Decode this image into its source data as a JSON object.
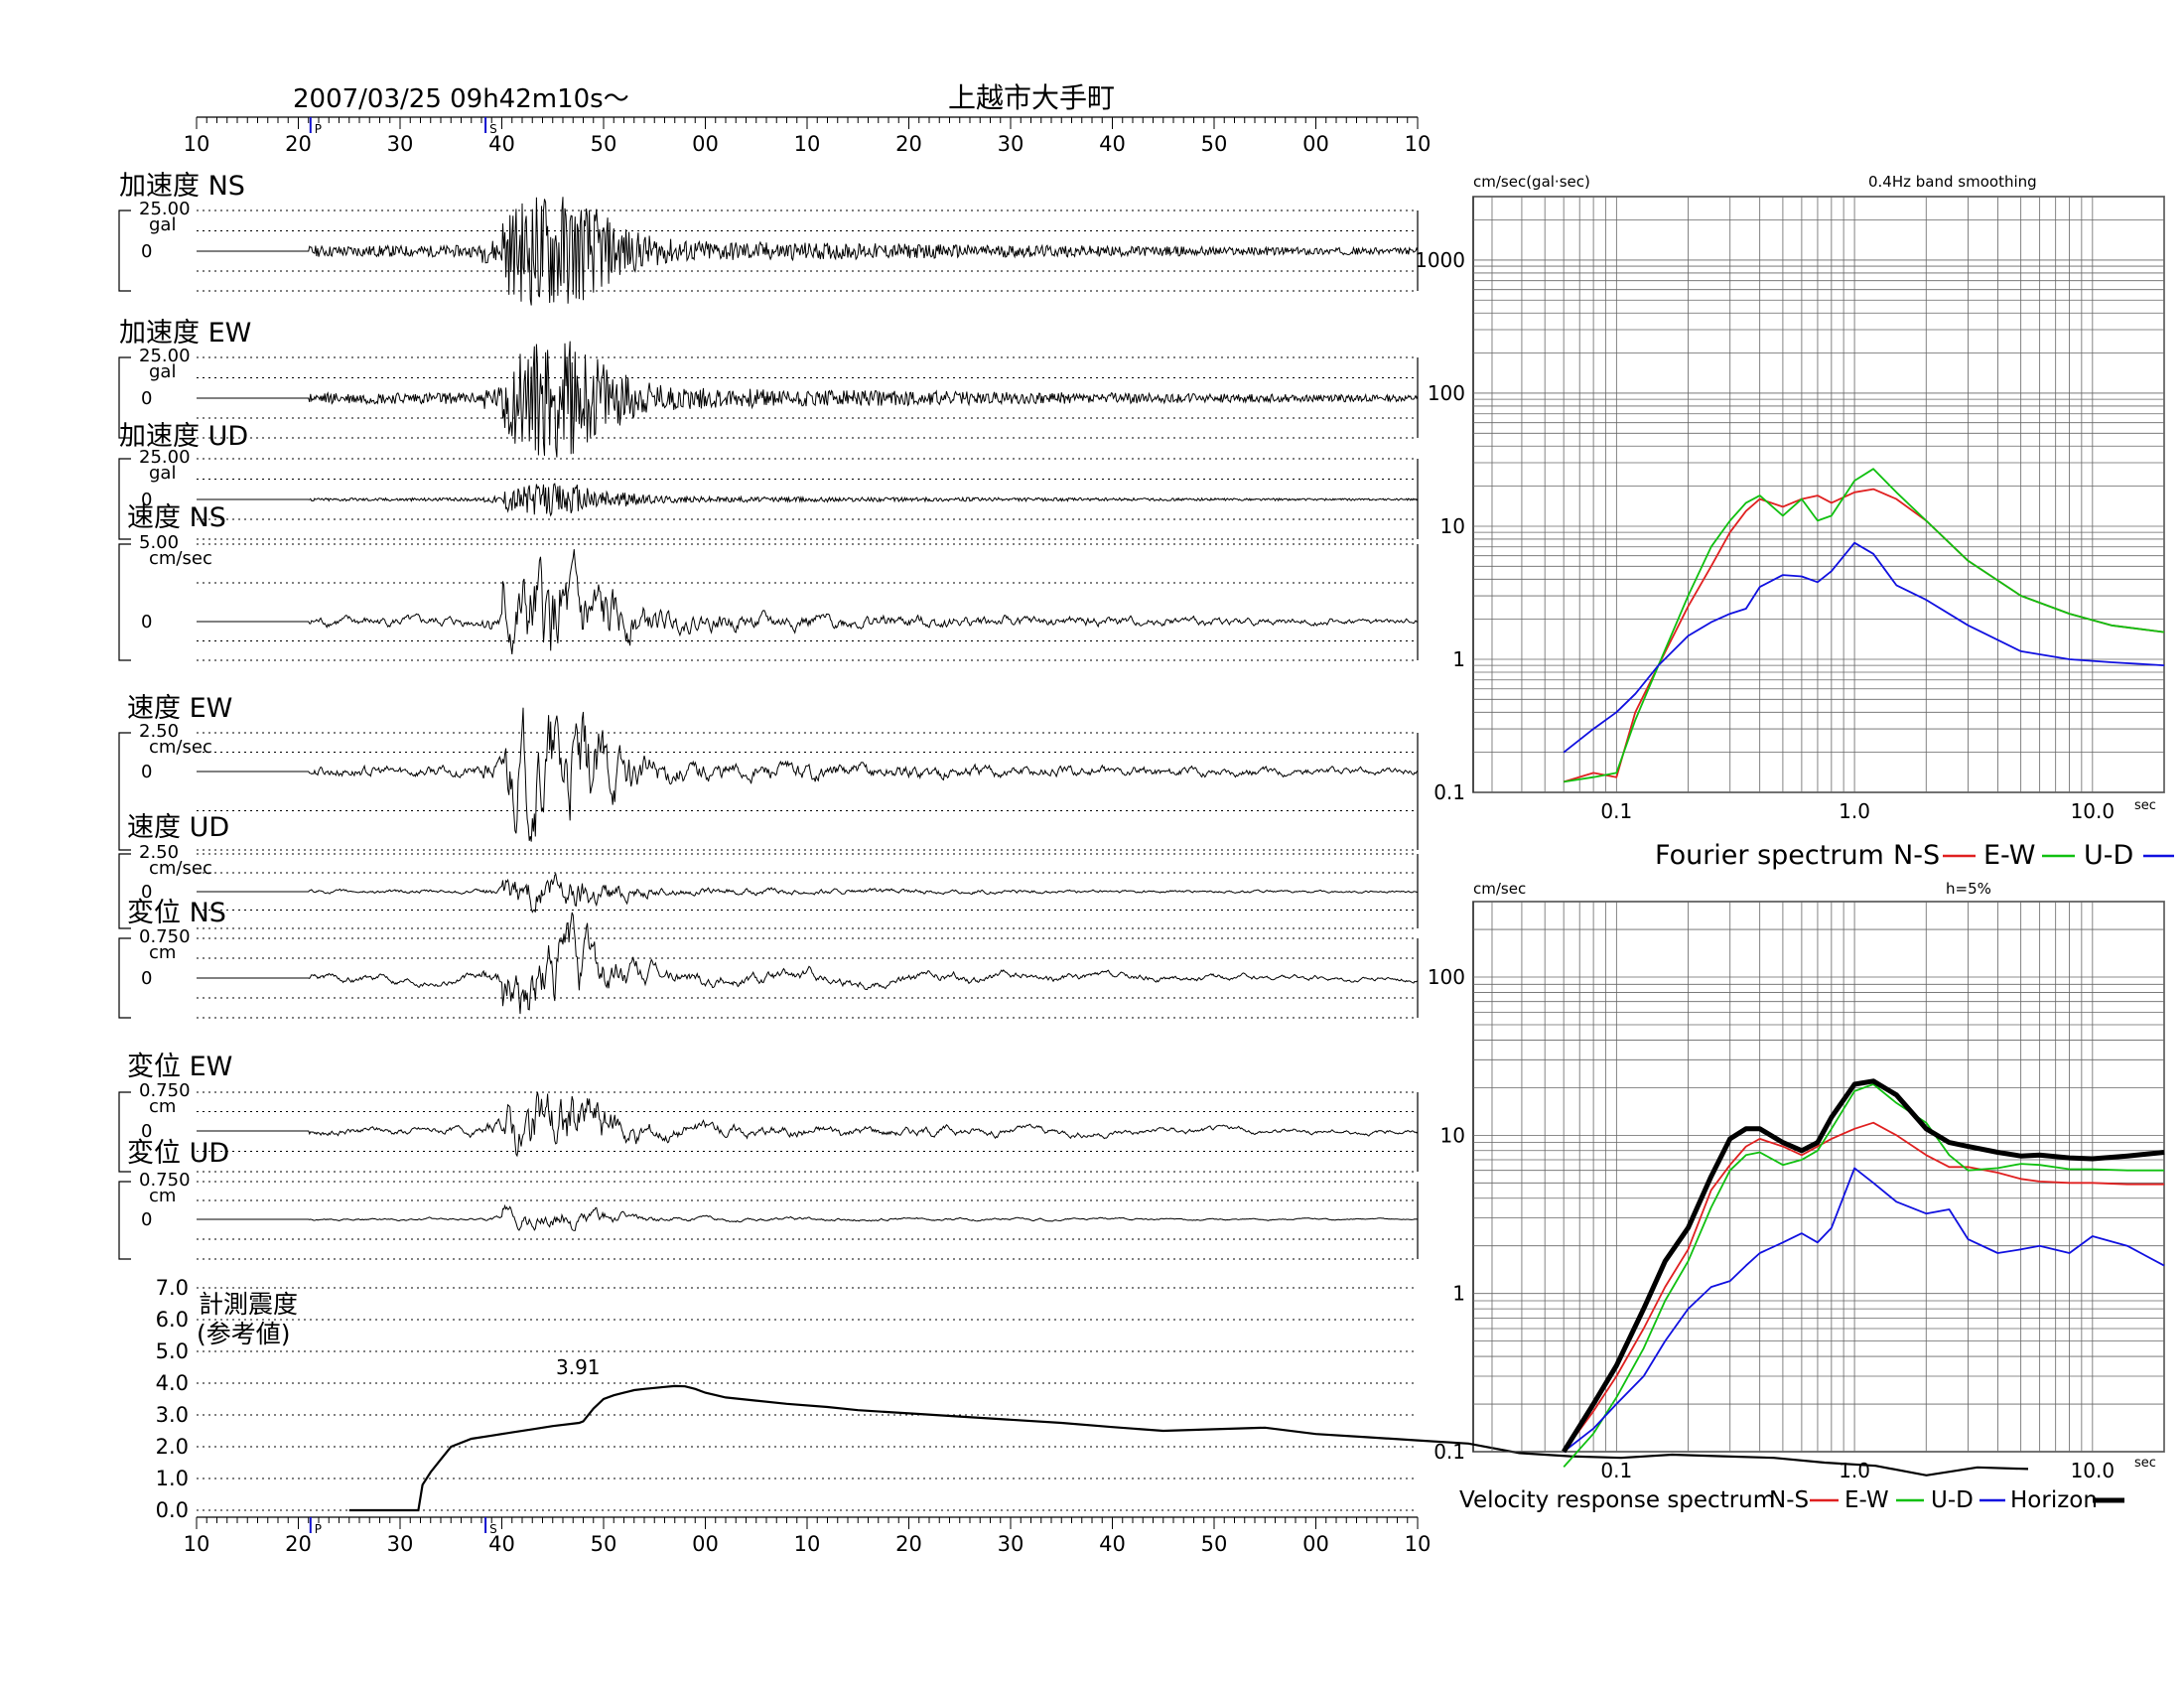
{
  "header": {
    "datetime": "2007/03/25  09h42m10s〜",
    "station": "上越市大手町",
    "minute_ticks": [
      "10",
      "20",
      "30",
      "40",
      "50",
      "00",
      "10",
      "20",
      "30",
      "40",
      "50",
      "00",
      "10"
    ],
    "p_mark": "P",
    "s_mark": "S"
  },
  "waveform_panels": [
    {
      "label": "加速度 NS",
      "scale": "25.00",
      "unit": "gal",
      "zero": "0",
      "amp": 1.0,
      "seed": 11
    },
    {
      "label": "加速度 EW",
      "scale": "25.00",
      "unit": "gal",
      "zero": "0",
      "amp": 1.0,
      "seed": 23
    },
    {
      "label": "加速度 UD",
      "scale": "25.00",
      "unit": "gal",
      "zero": "0",
      "amp": 0.28,
      "seed": 37
    },
    {
      "label": "速度 NS",
      "scale": "5.00",
      "unit": "cm/sec",
      "zero": "0",
      "amp": 0.9,
      "seed": 41
    },
    {
      "label": "速度 EW",
      "scale": "2.50",
      "unit": "cm/sec",
      "zero": "0",
      "amp": 1.0,
      "seed": 53
    },
    {
      "label": "速度 UD",
      "scale": "2.50",
      "unit": "cm/sec",
      "zero": "0",
      "amp": 0.35,
      "seed": 61
    },
    {
      "label": "変位 NS",
      "scale": "0.750",
      "unit": "cm",
      "zero": "0",
      "amp": 1.0,
      "seed": 71
    },
    {
      "label": "変位 EW",
      "scale": "0.750",
      "unit": "cm",
      "zero": "0",
      "amp": 1.0,
      "seed": 83
    },
    {
      "label": "変位 UD",
      "scale": "0.750",
      "unit": "cm",
      "zero": "0",
      "amp": 0.3,
      "seed": 97
    }
  ],
  "intensity": {
    "title_line1": "計測震度",
    "title_line2": "(参考値)",
    "yticks": [
      "7.0",
      "6.0",
      "5.0",
      "4.0",
      "3.0",
      "2.0",
      "1.0",
      "0.0"
    ],
    "peak_label": "3.91",
    "series_t": [
      15,
      21.8,
      22.2,
      23,
      24,
      25,
      27,
      29,
      31,
      33,
      35,
      37.6,
      38,
      39,
      40,
      41,
      42,
      43,
      44,
      45,
      46,
      47,
      48,
      49,
      50,
      52,
      55,
      58,
      62,
      65,
      70,
      75,
      80,
      85,
      90,
      95,
      100,
      105,
      110,
      115,
      120,
      125,
      130,
      135,
      140,
      145,
      150,
      155,
      160,
      165,
      170,
      175,
      180
    ],
    "series_v": [
      0,
      0,
      0.8,
      1.2,
      1.6,
      2.0,
      2.25,
      2.35,
      2.45,
      2.55,
      2.65,
      2.75,
      2.8,
      3.2,
      3.5,
      3.62,
      3.7,
      3.78,
      3.82,
      3.85,
      3.88,
      3.91,
      3.9,
      3.82,
      3.7,
      3.55,
      3.45,
      3.35,
      3.25,
      3.15,
      3.05,
      2.95,
      2.85,
      2.75,
      2.62,
      2.5,
      2.55,
      2.6,
      2.4,
      2.3,
      2.2,
      2.1,
      1.8,
      1.7,
      1.65,
      1.75,
      1.7,
      1.65,
      1.5,
      1.4,
      1.1,
      1.35,
      1.3
    ]
  },
  "fourier": {
    "ylabel": "cm/sec(gal·sec)",
    "note": "0.4Hz band smoothing",
    "yticks": [
      "1000",
      "100",
      "10",
      "1",
      "0.1"
    ],
    "xticks": [
      "0.1",
      "1.0",
      "10.0"
    ],
    "xunit": "sec",
    "legend": {
      "title": "Fourier spectrum",
      "ns": "N-S",
      "ew": "E-W",
      "ud": "U-D"
    }
  },
  "response": {
    "ylabel": "cm/sec",
    "note": "h=5%",
    "yticks": [
      "100",
      "10",
      "1",
      "0.1"
    ],
    "xticks": [
      "0.1",
      "1.0",
      "10.0"
    ],
    "xunit": "sec",
    "legend": {
      "title": "Velocity response spectrum",
      "ns": "N-S",
      "ew": "E-W",
      "ud": "U-D",
      "hz": "Horizon"
    }
  },
  "chart_data": [
    {
      "type": "line",
      "title": "Fourier spectrum",
      "xlabel": "sec",
      "ylabel": "cm/sec(gal·sec)",
      "xscale": "log",
      "yscale": "log",
      "xlim": [
        0.025,
        20
      ],
      "ylim": [
        0.1,
        3000
      ],
      "colors": {
        "N-S": "#e02020",
        "E-W": "#10c010",
        "U-D": "#1010e0"
      },
      "series": [
        {
          "name": "N-S",
          "x": [
            0.06,
            0.08,
            0.1,
            0.12,
            0.15,
            0.2,
            0.25,
            0.3,
            0.35,
            0.4,
            0.5,
            0.6,
            0.7,
            0.8,
            1.0,
            1.2,
            1.5,
            2.0,
            3.0,
            5.0,
            8.0,
            12.0,
            20.0
          ],
          "y": [
            0.12,
            0.14,
            0.13,
            0.4,
            0.9,
            2.5,
            5,
            9,
            13,
            16,
            14,
            16,
            17,
            15,
            18,
            19,
            16,
            11,
            5.5,
            3,
            2.2,
            1.8,
            1.6
          ]
        },
        {
          "name": "E-W",
          "x": [
            0.06,
            0.08,
            0.1,
            0.12,
            0.15,
            0.2,
            0.25,
            0.3,
            0.35,
            0.4,
            0.5,
            0.6,
            0.7,
            0.8,
            1.0,
            1.2,
            1.5,
            2.0,
            3.0,
            5.0,
            8.0,
            12.0,
            20.0
          ],
          "y": [
            0.12,
            0.13,
            0.14,
            0.35,
            0.9,
            3,
            7,
            11,
            15,
            17,
            12,
            16,
            11,
            12,
            22,
            27,
            18,
            11,
            5.5,
            3,
            2.2,
            1.8,
            1.6
          ]
        },
        {
          "name": "U-D",
          "x": [
            0.06,
            0.08,
            0.1,
            0.12,
            0.15,
            0.2,
            0.25,
            0.3,
            0.35,
            0.4,
            0.5,
            0.6,
            0.7,
            0.8,
            1.0,
            1.2,
            1.5,
            2.0,
            3.0,
            5.0,
            8.0,
            12.0,
            20.0
          ],
          "y": [
            0.2,
            0.3,
            0.4,
            0.55,
            0.9,
            1.5,
            1.9,
            2.2,
            2.4,
            3.5,
            4.3,
            4.2,
            3.8,
            4.6,
            7.5,
            6.2,
            3.6,
            2.8,
            1.8,
            1.15,
            1.0,
            0.95,
            0.9
          ]
        }
      ]
    },
    {
      "type": "line",
      "title": "Velocity response spectrum",
      "xlabel": "sec",
      "ylabel": "cm/sec",
      "note": "h=5%",
      "xscale": "log",
      "yscale": "log",
      "xlim": [
        0.025,
        20
      ],
      "ylim": [
        0.1,
        300
      ],
      "colors": {
        "N-S": "#e02020",
        "E-W": "#10c010",
        "U-D": "#1010e0",
        "Horizon": "#000000"
      },
      "series": [
        {
          "name": "N-S",
          "x": [
            0.06,
            0.08,
            0.1,
            0.13,
            0.16,
            0.2,
            0.25,
            0.3,
            0.35,
            0.4,
            0.5,
            0.6,
            0.7,
            0.8,
            1.0,
            1.2,
            1.5,
            2.0,
            2.5,
            3.0,
            4.0,
            5.0,
            6.0,
            8.0,
            10.0,
            14.0,
            20.0
          ],
          "y": [
            0.1,
            0.18,
            0.3,
            0.6,
            1.1,
            1.9,
            4.5,
            6.5,
            8.5,
            9.5,
            8.5,
            7.5,
            8.5,
            9.5,
            11,
            12,
            10,
            7.5,
            6.3,
            6.3,
            5.8,
            5.3,
            5.1,
            5.0,
            5.0,
            4.9,
            4.9
          ]
        },
        {
          "name": "E-W",
          "x": [
            0.06,
            0.08,
            0.1,
            0.13,
            0.16,
            0.2,
            0.25,
            0.3,
            0.35,
            0.4,
            0.5,
            0.6,
            0.7,
            0.8,
            1.0,
            1.2,
            1.5,
            2.0,
            2.5,
            3.0,
            4.0,
            5.0,
            6.0,
            8.0,
            10.0,
            14.0,
            20.0
          ],
          "y": [
            0.08,
            0.13,
            0.22,
            0.45,
            0.9,
            1.6,
            3.5,
            6,
            7.5,
            7.8,
            6.5,
            7,
            8,
            11,
            19,
            21,
            16,
            12,
            7.5,
            6,
            6.2,
            6.6,
            6.5,
            6.1,
            6.1,
            6.0,
            6.0
          ]
        },
        {
          "name": "U-D",
          "x": [
            0.06,
            0.08,
            0.1,
            0.13,
            0.16,
            0.2,
            0.25,
            0.3,
            0.35,
            0.4,
            0.5,
            0.6,
            0.7,
            0.8,
            1.0,
            1.2,
            1.5,
            2.0,
            2.5,
            3.0,
            4.0,
            5.0,
            6.0,
            8.0,
            10.0,
            14.0,
            20.0
          ],
          "y": [
            0.1,
            0.14,
            0.2,
            0.3,
            0.5,
            0.8,
            1.1,
            1.2,
            1.5,
            1.8,
            2.1,
            2.4,
            2.1,
            2.6,
            6.2,
            5,
            3.8,
            3.2,
            3.4,
            2.2,
            1.8,
            1.9,
            2.0,
            1.8,
            2.3,
            2.0,
            1.5
          ]
        },
        {
          "name": "Horizon",
          "x": [
            0.06,
            0.08,
            0.1,
            0.13,
            0.16,
            0.2,
            0.25,
            0.3,
            0.35,
            0.4,
            0.5,
            0.6,
            0.7,
            0.8,
            1.0,
            1.2,
            1.5,
            2.0,
            2.5,
            3.0,
            4.0,
            5.0,
            6.0,
            8.0,
            10.0,
            14.0,
            20.0
          ],
          "y": [
            0.1,
            0.2,
            0.35,
            0.8,
            1.6,
            2.6,
            5.5,
            9.5,
            11,
            11,
            9,
            8,
            9,
            13,
            21,
            22,
            18,
            11,
            9,
            8.5,
            7.8,
            7.4,
            7.5,
            7.2,
            7.1,
            7.4,
            7.8
          ]
        }
      ]
    }
  ]
}
